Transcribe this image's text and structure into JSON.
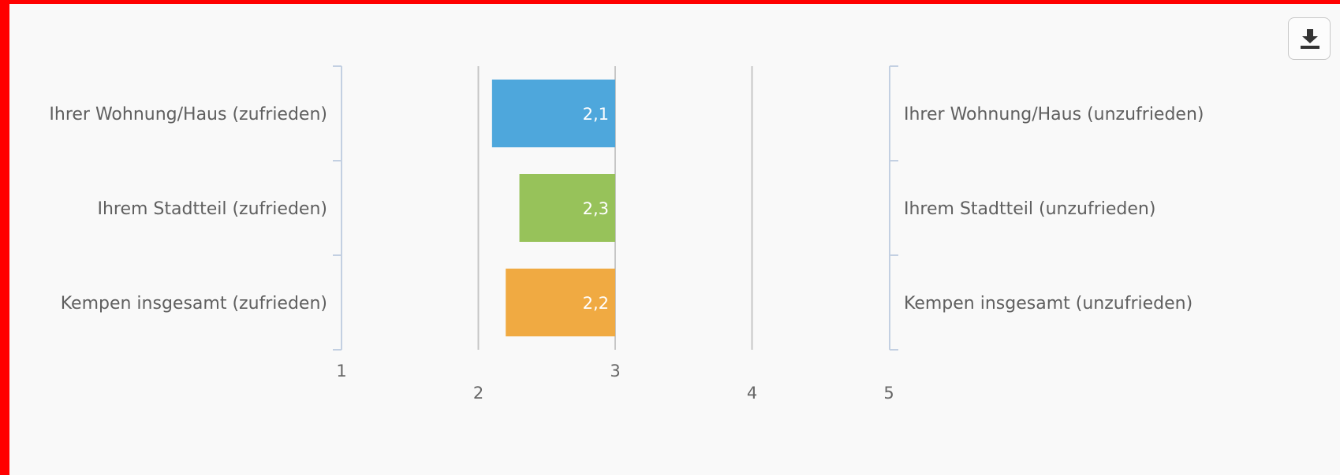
{
  "chart_data": {
    "type": "bar",
    "orientation": "horizontal",
    "categories_left": [
      "Ihrer Wohnung/Haus (zufrieden)",
      "Ihrem Stadtteil (zufrieden)",
      "Kempen insgesamt (zufrieden)"
    ],
    "categories_right": [
      "Ihrer Wohnung/Haus (unzufrieden)",
      "Ihrem Stadtteil (unzufrieden)",
      "Kempen insgesamt (unzufrieden)"
    ],
    "values": [
      2.1,
      2.3,
      2.2
    ],
    "base": 3,
    "data_labels": [
      "2,1",
      "2,3",
      "2,2"
    ],
    "colors": [
      "#4ea7dc",
      "#97c25a",
      "#f0aa42"
    ],
    "xlim": [
      1,
      5
    ],
    "x_ticks": [
      1,
      2,
      3,
      4,
      5
    ],
    "x_tick_labels": [
      "1",
      "2",
      "3",
      "4",
      "5"
    ],
    "grid": true,
    "legend": "none"
  },
  "toolbar": {
    "export_icon": "download-icon"
  }
}
